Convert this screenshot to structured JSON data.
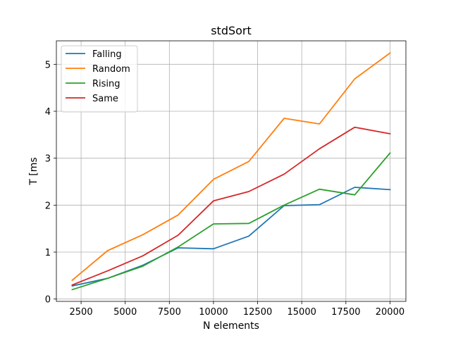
{
  "chart_data": {
    "type": "line",
    "title": "stdSort",
    "xlabel": "N elements",
    "ylabel": "T [ms",
    "x": [
      2000,
      4000,
      6000,
      8000,
      10000,
      12000,
      14000,
      16000,
      18000,
      20000
    ],
    "xlim": [
      1100,
      20900
    ],
    "ylim": [
      -0.05,
      5.5
    ],
    "xticks": [
      2500,
      5000,
      7500,
      10000,
      12500,
      15000,
      17500,
      20000
    ],
    "yticks": [
      0,
      1,
      2,
      3,
      4,
      5
    ],
    "grid": true,
    "legend_position": "upper-left",
    "series": [
      {
        "name": "Falling",
        "color": "#1f77b4",
        "values": [
          0.28,
          0.44,
          0.72,
          1.09,
          1.07,
          1.34,
          1.99,
          2.01,
          2.38,
          2.33
        ]
      },
      {
        "name": "Random",
        "color": "#ff7f0e",
        "values": [
          0.4,
          1.03,
          1.37,
          1.79,
          2.55,
          2.93,
          3.85,
          3.73,
          4.69,
          5.24
        ]
      },
      {
        "name": "Rising",
        "color": "#2ca02c",
        "values": [
          0.2,
          0.44,
          0.7,
          1.11,
          1.6,
          1.61,
          2.0,
          2.34,
          2.22,
          3.11
        ]
      },
      {
        "name": "Same",
        "color": "#d62728",
        "values": [
          0.3,
          0.6,
          0.92,
          1.36,
          2.09,
          2.29,
          2.66,
          3.2,
          3.66,
          3.52
        ]
      }
    ]
  }
}
